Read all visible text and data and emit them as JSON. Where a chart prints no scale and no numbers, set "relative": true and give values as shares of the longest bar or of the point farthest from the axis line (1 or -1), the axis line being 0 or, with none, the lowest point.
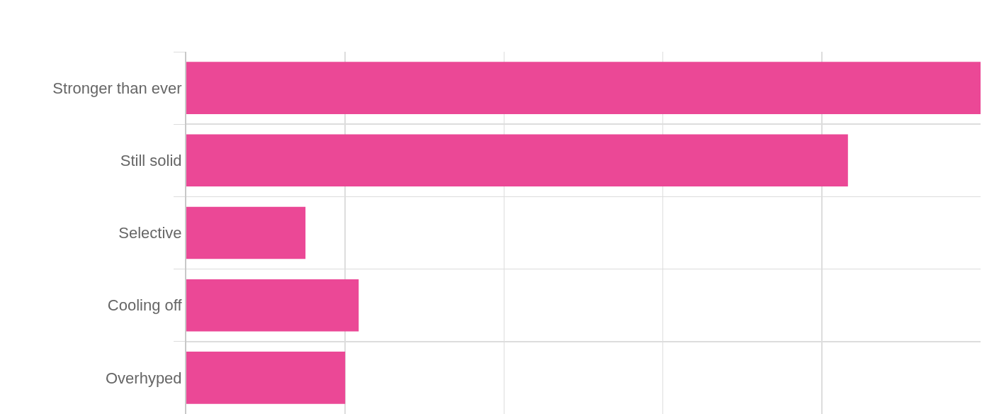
{
  "chart_data": {
    "type": "bar",
    "orientation": "horizontal",
    "relative": true,
    "categories": [
      "Stronger than ever",
      "Still solid",
      "Selective",
      "Cooling off",
      "Overhyped"
    ],
    "values": [
      1,
      0.833,
      0.15,
      0.217,
      0.2
    ],
    "color": "#eb4896",
    "grid": true
  }
}
